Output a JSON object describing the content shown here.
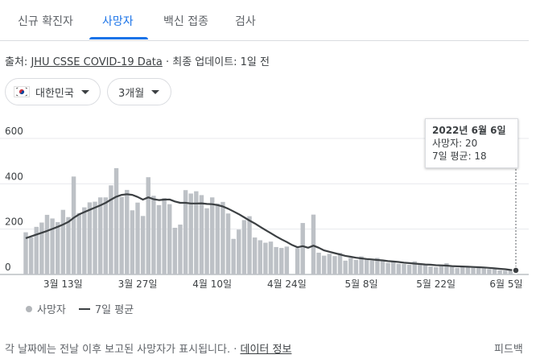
{
  "tabs": [
    {
      "label": "신규 확진자",
      "active": false
    },
    {
      "label": "사망자",
      "active": true
    },
    {
      "label": "백신 접종",
      "active": false
    },
    {
      "label": "검사",
      "active": false
    }
  ],
  "source": {
    "prefix": "출처: ",
    "link_text": "JHU CSSE COVID-19 Data",
    "updated": " · 최종 업데이트: 1일 전"
  },
  "filters": {
    "country": "대한민국",
    "range": "3개월"
  },
  "legend": {
    "bars_label": "사망자",
    "line_label": "7일 평균"
  },
  "tooltip": {
    "date": "2022년 6월 6일",
    "deaths": "사망자: 20",
    "avg": "7일 평균: 18"
  },
  "footer": {
    "note": "각 날짜에는 전날 이후 보고된 사망자가 표시됩니다. · ",
    "link": "데이터 정보",
    "feedback": "피드백"
  },
  "colors": {
    "accent": "#1a73e8",
    "bar": "#bdc1c6",
    "line": "#3c4043"
  },
  "chart_data": {
    "type": "bar",
    "title": "",
    "xlabel": "",
    "ylabel": "",
    "ylim": [
      0,
      600
    ],
    "yticks": [
      0,
      200,
      400,
      600
    ],
    "grid": true,
    "legend_position": "bottom-left",
    "xtick_labels": [
      {
        "date": "2022-03-13",
        "label": "3월 13일"
      },
      {
        "date": "2022-03-27",
        "label": "3월 27일"
      },
      {
        "date": "2022-04-10",
        "label": "4월 10일"
      },
      {
        "date": "2022-04-24",
        "label": "4월 24일"
      },
      {
        "date": "2022-05-08",
        "label": "5월 8일"
      },
      {
        "date": "2022-05-22",
        "label": "5월 22일"
      },
      {
        "date": "2022-06-05",
        "label": "6월 5일"
      }
    ],
    "x": [
      "2022-03-06",
      "2022-03-07",
      "2022-03-08",
      "2022-03-09",
      "2022-03-10",
      "2022-03-11",
      "2022-03-12",
      "2022-03-13",
      "2022-03-14",
      "2022-03-15",
      "2022-03-16",
      "2022-03-17",
      "2022-03-18",
      "2022-03-19",
      "2022-03-20",
      "2022-03-21",
      "2022-03-22",
      "2022-03-23",
      "2022-03-24",
      "2022-03-25",
      "2022-03-26",
      "2022-03-27",
      "2022-03-28",
      "2022-03-29",
      "2022-03-30",
      "2022-03-31",
      "2022-04-01",
      "2022-04-02",
      "2022-04-03",
      "2022-04-04",
      "2022-04-05",
      "2022-04-06",
      "2022-04-07",
      "2022-04-08",
      "2022-04-09",
      "2022-04-10",
      "2022-04-11",
      "2022-04-12",
      "2022-04-13",
      "2022-04-14",
      "2022-04-15",
      "2022-04-16",
      "2022-04-17",
      "2022-04-18",
      "2022-04-19",
      "2022-04-20",
      "2022-04-21",
      "2022-04-22",
      "2022-04-23",
      "2022-04-24",
      "2022-04-25",
      "2022-04-26",
      "2022-04-27",
      "2022-04-28",
      "2022-04-29",
      "2022-04-30",
      "2022-05-01",
      "2022-05-02",
      "2022-05-03",
      "2022-05-04",
      "2022-05-05",
      "2022-05-06",
      "2022-05-07",
      "2022-05-08",
      "2022-05-09",
      "2022-05-10",
      "2022-05-11",
      "2022-05-12",
      "2022-05-13",
      "2022-05-14",
      "2022-05-15",
      "2022-05-16",
      "2022-05-17",
      "2022-05-18",
      "2022-05-19",
      "2022-05-20",
      "2022-05-21",
      "2022-05-22",
      "2022-05-23",
      "2022-05-24",
      "2022-05-25",
      "2022-05-26",
      "2022-05-27",
      "2022-05-28",
      "2022-05-29",
      "2022-05-30",
      "2022-05-31",
      "2022-06-01",
      "2022-06-02",
      "2022-06-03",
      "2022-06-04",
      "2022-06-05",
      "2022-06-06"
    ],
    "series": [
      {
        "name": "사망자",
        "kind": "bar",
        "values": [
          186,
          164,
          210,
          229,
          263,
          247,
          231,
          285,
          253,
          432,
          271,
          296,
          318,
          321,
          340,
          340,
          393,
          469,
          342,
          373,
          283,
          317,
          258,
          429,
          347,
          306,
          337,
          310,
          206,
          220,
          372,
          357,
          367,
          350,
          292,
          340,
          313,
          320,
          269,
          157,
          198,
          240,
          257,
          163,
          151,
          140,
          145,
          121,
          117,
          123,
          0,
          116,
          227,
          0,
          264,
          96,
          83,
          91,
          81,
          95,
          61,
          73,
          64,
          80,
          70,
          61,
          73,
          60,
          51,
          56,
          47,
          46,
          43,
          58,
          47,
          43,
          35,
          32,
          37,
          50,
          33,
          29,
          33,
          35,
          30,
          29,
          31,
          24,
          23,
          18,
          17,
          18,
          20
        ]
      },
      {
        "name": "7일 평균",
        "kind": "line",
        "values": [
          160,
          168,
          176,
          184,
          192,
          201,
          210,
          220,
          232,
          250,
          265,
          275,
          285,
          295,
          305,
          316,
          330,
          343,
          351,
          354,
          351,
          342,
          330,
          340,
          332,
          328,
          330,
          331,
          322,
          316,
          316,
          313,
          313,
          314,
          311,
          310,
          306,
          300,
          290,
          278,
          266,
          252,
          238,
          225,
          210,
          196,
          182,
          168,
          155,
          143,
          130,
          120,
          125,
          118,
          127,
          118,
          106,
          100,
          94,
          88,
          82,
          78,
          74,
          71,
          68,
          66,
          64,
          62,
          59,
          57,
          55,
          52,
          50,
          48,
          46,
          44,
          43,
          41,
          40,
          39,
          37,
          36,
          35,
          34,
          33,
          32,
          31,
          29,
          27,
          25,
          23,
          20,
          18
        ]
      }
    ]
  }
}
